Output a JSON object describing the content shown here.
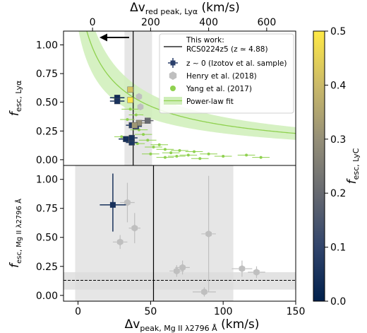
{
  "chart_data": [
    {
      "panel": "top",
      "type": "scatter",
      "x_top_label": "Δv",
      "x_top_label_sub": "red peak, Lyα",
      "x_top_label_unit": " (km/s)",
      "x_top_range": [
        -100,
        700
      ],
      "x_top_ticks": [
        "0",
        "200",
        "400",
        "600"
      ],
      "x_top_tick_values": [
        0,
        200,
        400,
        600
      ],
      "ylabel": "f",
      "ylabel_sub": "esc, Lyα",
      "ylim": [
        -0.05,
        1.12
      ],
      "y_ticks": [
        "0.00",
        "0.25",
        "0.50",
        "0.75",
        "1.00"
      ],
      "y_tick_values": [
        0.0,
        0.25,
        0.5,
        0.75,
        1.0
      ],
      "this_work_x": 140,
      "this_work_band": [
        110,
        205
      ],
      "legend": {
        "placement": "top-right",
        "entries": [
          {
            "label": "This work:",
            "label2": "RCS0224z5 (z ≃ 4.88)",
            "marker": "line"
          },
          {
            "label": "z ∼ 0 (Izotov et al. sample)",
            "marker": "dark-errorbar"
          },
          {
            "label": "Henry et al. (2018)",
            "marker": "gray-hexagon"
          },
          {
            "label": "Yang et al. (2017)",
            "marker": "green-dot"
          },
          {
            "label": "Power-law fit",
            "marker": "green-band"
          }
        ]
      },
      "series": [
        {
          "name": "z ∼ 0 (Izotov et al. sample)",
          "points": [
            {
              "x": 85,
              "y": 0.54,
              "xerr": 25,
              "yerr": 0.02,
              "c": 0.03
            },
            {
              "x": 85,
              "y": 0.51,
              "xerr": 25,
              "yerr": 0.02,
              "c": 0.05
            },
            {
              "x": 115,
              "y": 0.18,
              "xerr": 25,
              "yerr": 0.02,
              "c": 0.04
            },
            {
              "x": 135,
              "y": 0.15,
              "xerr": 20,
              "yerr": 0.02,
              "c": 0.06
            },
            {
              "x": 135,
              "y": 0.19,
              "xerr": 20,
              "yerr": 0.02,
              "c": 0.05
            },
            {
              "x": 135,
              "y": 0.3,
              "xerr": 20,
              "yerr": 0.02,
              "c": 0.08
            },
            {
              "x": 150,
              "y": 0.29,
              "xerr": 20,
              "yerr": 0.02,
              "c": 0.1
            },
            {
              "x": 160,
              "y": 0.32,
              "xerr": 20,
              "yerr": 0.02,
              "c": 0.3
            },
            {
              "x": 190,
              "y": 0.34,
              "xerr": 20,
              "yerr": 0.02,
              "c": 0.2
            },
            {
              "x": 130,
              "y": 0.61,
              "xerr": 10,
              "yerr": 0.02,
              "c": 0.42
            },
            {
              "x": 130,
              "y": 0.52,
              "xerr": 10,
              "yerr": 0.02,
              "c": 0.49
            },
            {
              "x": 145,
              "y": 0.3,
              "xerr": 10,
              "yerr": 0.02,
              "c": 0.32
            }
          ]
        },
        {
          "name": "Henry et al. (2018)",
          "points": [
            {
              "x": 160,
              "y": 0.55,
              "xerr": 10,
              "yerr": 0.02
            },
            {
              "x": 165,
              "y": 0.46,
              "xerr": 10,
              "yerr": 0.02
            }
          ]
        },
        {
          "name": "Yang et al. (2017)",
          "points": [
            {
              "x": 130,
              "y": 0.44,
              "xerr": 30
            },
            {
              "x": 150,
              "y": 0.39,
              "xerr": 25
            },
            {
              "x": 120,
              "y": 0.35,
              "xerr": 25
            },
            {
              "x": 160,
              "y": 0.26,
              "xerr": 30
            },
            {
              "x": 175,
              "y": 0.22,
              "xerr": 30
            },
            {
              "x": 100,
              "y": 0.2,
              "xerr": 25
            },
            {
              "x": 190,
              "y": 0.17,
              "xerr": 30
            },
            {
              "x": 155,
              "y": 0.14,
              "xerr": 25
            },
            {
              "x": 230,
              "y": 0.13,
              "xerr": 30
            },
            {
              "x": 210,
              "y": 0.11,
              "xerr": 30
            },
            {
              "x": 250,
              "y": 0.09,
              "xerr": 30
            },
            {
              "x": 300,
              "y": 0.08,
              "xerr": 30
            },
            {
              "x": 270,
              "y": 0.06,
              "xerr": 30
            },
            {
              "x": 200,
              "y": 0.05,
              "xerr": 30
            },
            {
              "x": 350,
              "y": 0.07,
              "xerr": 30
            },
            {
              "x": 330,
              "y": 0.04,
              "xerr": 30
            },
            {
              "x": 400,
              "y": 0.05,
              "xerr": 30
            },
            {
              "x": 290,
              "y": 0.03,
              "xerr": 30
            },
            {
              "x": 250,
              "y": 0.02,
              "xerr": 30
            },
            {
              "x": 450,
              "y": 0.03,
              "xerr": 30
            },
            {
              "x": 530,
              "y": 0.04,
              "xerr": 30
            },
            {
              "x": 580,
              "y": 0.02,
              "xerr": 30
            },
            {
              "x": 370,
              "y": 0.01,
              "xerr": 30
            }
          ]
        },
        {
          "name": "Power-law fit",
          "fit_A": 27.1,
          "fit_p": 0.7,
          "fit_scale": 12.3,
          "band_upper_A": 33,
          "band_lower_A": 21
        }
      ]
    },
    {
      "panel": "bottom",
      "type": "scatter",
      "xlabel": "Δv",
      "xlabel_sub": "peak, Mg II λ2796 Å",
      "xlabel_unit": " (km/s)",
      "xlim": [
        -10,
        150
      ],
      "x_ticks": [
        "0",
        "50",
        "100",
        "150"
      ],
      "x_tick_values": [
        0,
        50,
        100,
        150
      ],
      "ylabel": "f",
      "ylabel_sub": "esc, Mg II λ2796 Å",
      "ylim": [
        -0.05,
        1.12
      ],
      "y_ticks": [
        "0.00",
        "0.25",
        "0.50",
        "0.75",
        "1.00"
      ],
      "y_tick_values": [
        0.0,
        0.25,
        0.5,
        0.75,
        1.0
      ],
      "this_work_x": 52,
      "this_work_band": [
        -2,
        107
      ],
      "this_work_y": 0.13,
      "this_work_y_band": [
        0.05,
        0.2
      ],
      "series": [
        {
          "name": "z ∼ 0 (Izotov et al. sample)",
          "points": [
            {
              "x": 24,
              "y": 0.78,
              "xerr": 9,
              "yerr_lo": 0.23,
              "yerr_hi": 0.27,
              "c": 0.05
            }
          ]
        },
        {
          "name": "Henry et al. (2018)",
          "points": [
            {
              "x": 34,
              "y": 0.8,
              "xerr": 5,
              "yerr": 0.17
            },
            {
              "x": 29,
              "y": 0.46,
              "xerr": 5,
              "yerr": 0.06
            },
            {
              "x": 39,
              "y": 0.58,
              "xerr": 4,
              "yerr": 0.13
            },
            {
              "x": 68,
              "y": 0.21,
              "xerr": 5,
              "yerr": 0.05
            },
            {
              "x": 72,
              "y": 0.24,
              "xerr": 5,
              "yerr": 0.06
            },
            {
              "x": 90,
              "y": 0.53,
              "xerr": 5,
              "yerr": 0.5
            },
            {
              "x": 87,
              "y": 0.03,
              "xerr": 8,
              "yerr": 0.04
            },
            {
              "x": 113,
              "y": 0.23,
              "xerr": 7,
              "yerr": 0.07
            },
            {
              "x": 123,
              "y": 0.2,
              "xerr": 6,
              "yerr": 0.05
            }
          ]
        }
      ]
    }
  ],
  "colorbar": {
    "label": "f",
    "label_sub": "esc, LyC",
    "range": [
      0,
      0.5
    ],
    "ticks": [
      "0.0",
      "0.1",
      "0.2",
      "0.3",
      "0.4",
      "0.5"
    ],
    "tick_values": [
      0.0,
      0.1,
      0.2,
      0.3,
      0.4,
      0.5
    ],
    "colormap": [
      "#00204c",
      "#31446b",
      "#666970",
      "#958f78",
      "#cbba69",
      "#ffe945"
    ]
  },
  "colors": {
    "izotov": "#2a3f6b",
    "henry": "#bfbfbf",
    "yang": "#8fd14f",
    "band_gray": "#e6e6e6",
    "fit_band": "#cfeeb8"
  }
}
